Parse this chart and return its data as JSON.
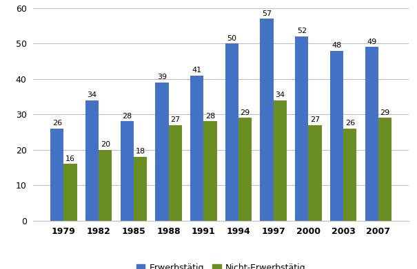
{
  "years": [
    "1979",
    "1982",
    "1985",
    "1988",
    "1991",
    "1994",
    "1997",
    "2000",
    "2003",
    "2007"
  ],
  "erwerbstaetig": [
    26,
    34,
    28,
    39,
    41,
    50,
    57,
    52,
    48,
    49
  ],
  "nicht_erwerbstaetig": [
    16,
    20,
    18,
    27,
    28,
    29,
    34,
    27,
    26,
    29
  ],
  "color_erwerb": "#4472C4",
  "color_nicht_erwerb": "#6B8E23",
  "legend_erwerb": "Erwerbstätig",
  "legend_nicht_erwerb": "Nicht-Erwerbstätig",
  "ylim": [
    0,
    60
  ],
  "yticks": [
    0,
    10,
    20,
    30,
    40,
    50,
    60
  ],
  "bar_width": 0.38,
  "label_fontsize": 8,
  "tick_fontsize": 9,
  "legend_fontsize": 9,
  "bg_color": "#FFFFFF",
  "grid_color": "#BFBFBF"
}
